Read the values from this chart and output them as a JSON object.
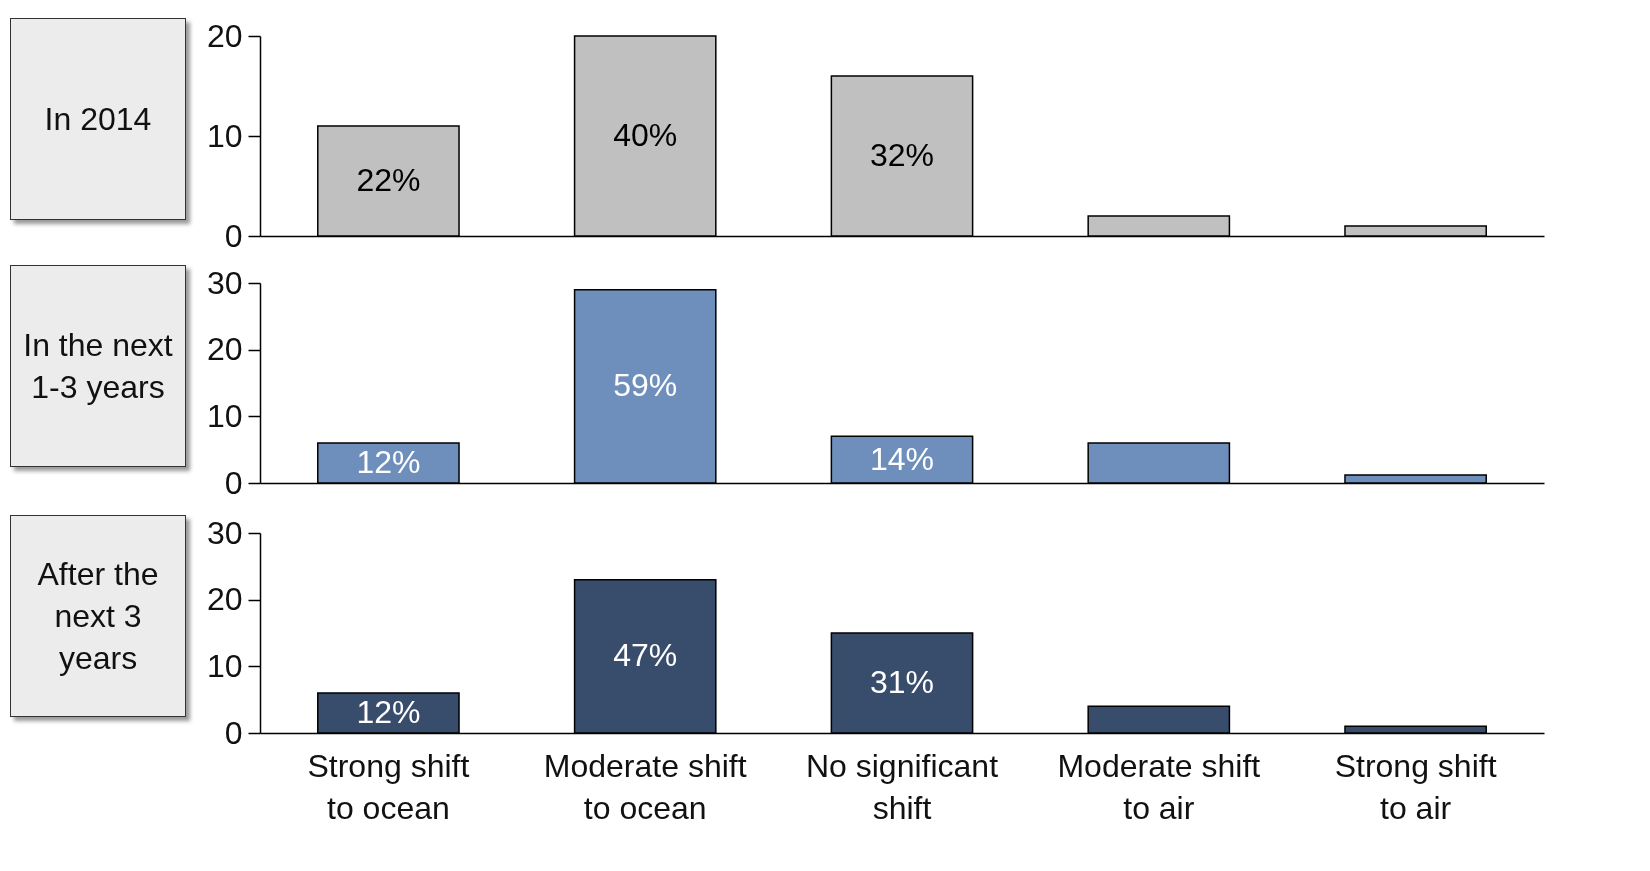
{
  "chart_data": [
    {
      "type": "bar",
      "title": "In 2014",
      "categories": [
        "Strong shift to ocean",
        "Moderate shift to ocean",
        "No significant shift",
        "Moderate shift to air",
        "Strong shift to air"
      ],
      "values": [
        11,
        20,
        16,
        2,
        1
      ],
      "annotations": [
        {
          "text": "22%",
          "x": "Strong shift to ocean",
          "y": 11
        },
        {
          "text": "40%",
          "x": "Moderate shift to ocean",
          "y": 20
        },
        {
          "text": "32%",
          "x": "No significant shift",
          "y": 16
        }
      ],
      "color": "#c0c0c0",
      "ylim": [
        0,
        20
      ],
      "yticks": [
        0,
        10,
        20
      ],
      "tick_labels": "y",
      "grid": false,
      "legend": false
    },
    {
      "type": "bar",
      "title": "In the next 1-3 years",
      "categories": [
        "Strong shift to ocean",
        "Moderate shift to ocean",
        "No significant shift",
        "Moderate shift to air",
        "Strong shift to air"
      ],
      "values": [
        6,
        29,
        7,
        6,
        1.2
      ],
      "annotations": [
        {
          "text": "12%",
          "x": "Strong shift to ocean",
          "y": 6
        },
        {
          "text": "59%",
          "x": "Moderate shift to ocean",
          "y": 29
        },
        {
          "text": "14%",
          "x": "No significant shift",
          "y": 7
        }
      ],
      "color": "#6e8fbb",
      "ylim": [
        0,
        30
      ],
      "yticks": [
        0,
        10,
        20,
        30
      ],
      "tick_labels": "y",
      "grid": false,
      "legend": false
    },
    {
      "type": "bar",
      "title": "After the next 3 years",
      "categories": [
        "Strong shift to ocean",
        "Moderate shift to ocean",
        "No significant shift",
        "Moderate shift to air",
        "Strong shift to air"
      ],
      "values": [
        6,
        23,
        15,
        4,
        1
      ],
      "annotations": [
        {
          "text": "12%",
          "x": "Strong shift to ocean",
          "y": 6
        },
        {
          "text": "47%",
          "x": "Moderate shift to ocean",
          "y": 23
        },
        {
          "text": "31%",
          "x": "No significant shift",
          "y": 15
        }
      ],
      "color": "#384c6b",
      "ylim": [
        0,
        30
      ],
      "yticks": [
        0,
        10,
        20,
        30
      ],
      "grid": false,
      "legend": false
    }
  ]
}
